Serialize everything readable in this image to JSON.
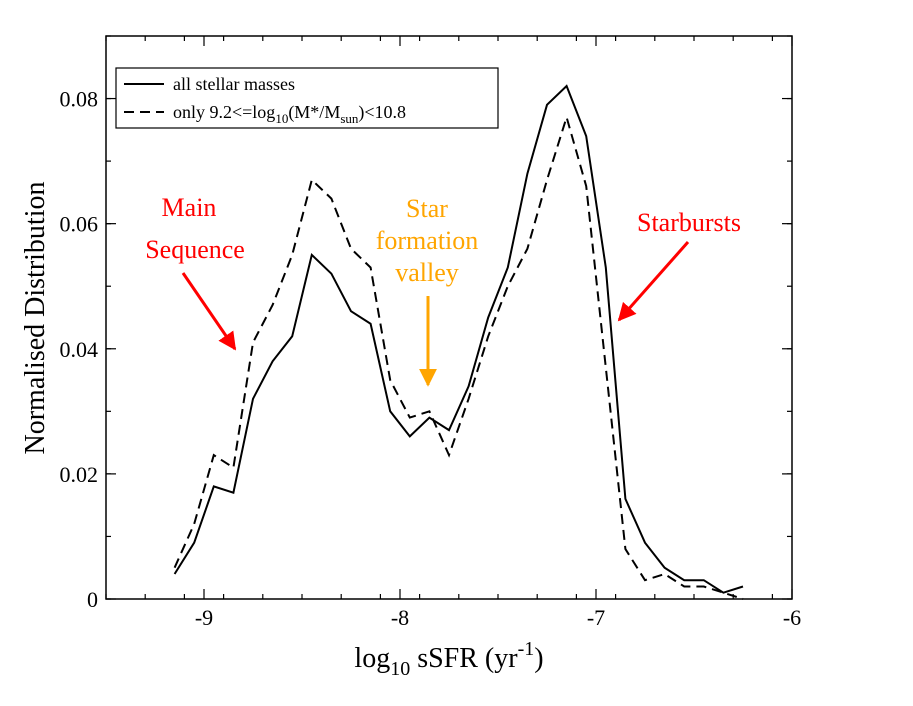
{
  "chart_data": {
    "type": "line",
    "xlabel": {
      "prefix": "log",
      "sub": "10",
      "main": " sSFR (yr",
      "sup": "-1",
      "suffix": ")"
    },
    "ylabel": "Normalised Distribution",
    "xlim": [
      -9.5,
      -6.0
    ],
    "ylim": [
      0,
      0.09
    ],
    "x_major_ticks": [
      -9,
      -8,
      -7,
      -6
    ],
    "x_tick_labels": [
      "-9",
      "-8",
      "-7",
      "-6"
    ],
    "x_minor_step": 0.2,
    "y_major_ticks": [
      0,
      0.02,
      0.04,
      0.06,
      0.08
    ],
    "y_tick_labels": [
      "0",
      "0.02",
      "0.04",
      "0.06",
      "0.08"
    ],
    "y_minor_step": 0.01,
    "legend_position": "top-left",
    "series": [
      {
        "name": "all stellar masses",
        "style": "solid",
        "legend_label": {
          "text": "all stellar masses"
        },
        "points": [
          [
            -9.15,
            0.004
          ],
          [
            -9.05,
            0.009
          ],
          [
            -8.95,
            0.018
          ],
          [
            -8.85,
            0.017
          ],
          [
            -8.75,
            0.032
          ],
          [
            -8.65,
            0.038
          ],
          [
            -8.55,
            0.042
          ],
          [
            -8.45,
            0.055
          ],
          [
            -8.35,
            0.052
          ],
          [
            -8.25,
            0.046
          ],
          [
            -8.15,
            0.044
          ],
          [
            -8.05,
            0.03
          ],
          [
            -7.95,
            0.026
          ],
          [
            -7.85,
            0.029
          ],
          [
            -7.75,
            0.027
          ],
          [
            -7.65,
            0.034
          ],
          [
            -7.55,
            0.045
          ],
          [
            -7.45,
            0.053
          ],
          [
            -7.35,
            0.068
          ],
          [
            -7.25,
            0.079
          ],
          [
            -7.15,
            0.082
          ],
          [
            -7.05,
            0.074
          ],
          [
            -6.95,
            0.053
          ],
          [
            -6.85,
            0.016
          ],
          [
            -6.75,
            0.009
          ],
          [
            -6.65,
            0.005
          ],
          [
            -6.55,
            0.003
          ],
          [
            -6.45,
            0.003
          ],
          [
            -6.35,
            0.001
          ],
          [
            -6.25,
            0.002
          ]
        ]
      },
      {
        "name": "only 9.2<=log10(M*/Msun)<10.8",
        "style": "dashed",
        "legend_label": {
          "pre": "only 9.2<=log",
          "sub1": "10",
          "mid": "(M*/M",
          "sub2": "sun",
          "post": ")<10.8"
        },
        "points": [
          [
            -9.15,
            0.005
          ],
          [
            -9.05,
            0.012
          ],
          [
            -8.95,
            0.023
          ],
          [
            -8.85,
            0.021
          ],
          [
            -8.75,
            0.041
          ],
          [
            -8.65,
            0.047
          ],
          [
            -8.55,
            0.055
          ],
          [
            -8.45,
            0.067
          ],
          [
            -8.35,
            0.064
          ],
          [
            -8.25,
            0.056
          ],
          [
            -8.15,
            0.053
          ],
          [
            -8.05,
            0.035
          ],
          [
            -7.95,
            0.029
          ],
          [
            -7.85,
            0.03
          ],
          [
            -7.75,
            0.023
          ],
          [
            -7.65,
            0.032
          ],
          [
            -7.55,
            0.042
          ],
          [
            -7.45,
            0.05
          ],
          [
            -7.35,
            0.056
          ],
          [
            -7.25,
            0.067
          ],
          [
            -7.15,
            0.077
          ],
          [
            -7.05,
            0.066
          ],
          [
            -6.95,
            0.037
          ],
          [
            -6.85,
            0.008
          ],
          [
            -6.75,
            0.003
          ],
          [
            -6.65,
            0.004
          ],
          [
            -6.55,
            0.002
          ],
          [
            -6.45,
            0.002
          ],
          [
            -6.35,
            0.001
          ],
          [
            -6.25,
            0.0
          ]
        ]
      }
    ],
    "annotations": [
      {
        "id": "main-sequence",
        "lines": [
          "Main",
          "Sequence"
        ],
        "color": "#ff0000"
      },
      {
        "id": "valley",
        "lines": [
          "Star",
          "formation",
          "valley"
        ],
        "color": "#ffa500"
      },
      {
        "id": "starbursts",
        "lines": [
          "Starbursts"
        ],
        "color": "#ff0000"
      }
    ]
  }
}
